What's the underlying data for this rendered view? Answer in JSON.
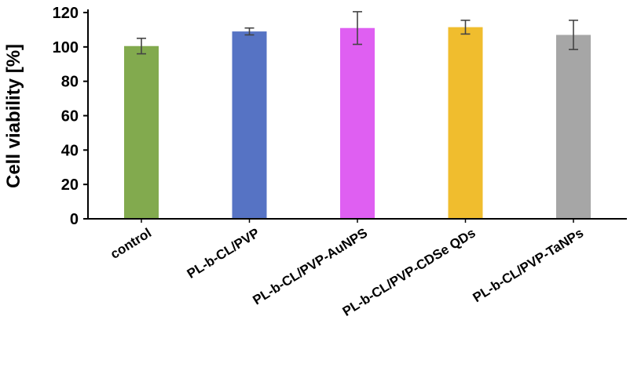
{
  "chart_data": {
    "type": "bar",
    "categories": [
      "control",
      "PL-b-CL/PVP",
      "PL-b-CL/PVP-AuNPS",
      "PL-b-CL/PVP-CDSe QDs",
      "PL-b-CL/PVP-TaNPs"
    ],
    "values": [
      100.5,
      109,
      111,
      111.5,
      107
    ],
    "errors": [
      4.5,
      2,
      9.5,
      4,
      8.5
    ],
    "colors": [
      "#82aa4e",
      "#5673c4",
      "#df5ff2",
      "#f0bd2e",
      "#a6a6a6"
    ],
    "ylabel": "Cell viability [%]",
    "xlabel": "",
    "ylim": [
      0,
      120
    ],
    "yticks": [
      0,
      20,
      40,
      60,
      80,
      100,
      120
    ],
    "grid": false,
    "legend": "none"
  }
}
